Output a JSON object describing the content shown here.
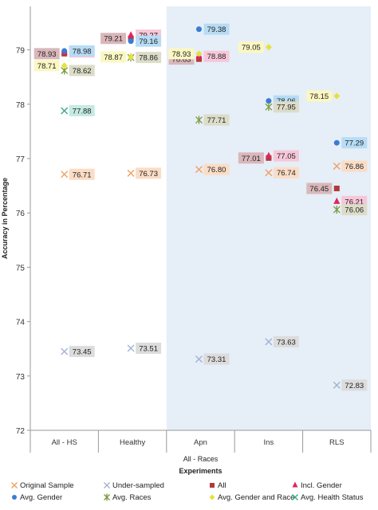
{
  "chart_data": {
    "type": "scatter",
    "ylabel": "Accuracy in Percentage",
    "xlabel": "Experiments",
    "group_label": "All - Races",
    "categories": [
      "All - HS",
      "Healthy",
      "Apn",
      "Ins",
      "RLS"
    ],
    "ylim": [
      72,
      79.8
    ],
    "yticks": [
      72,
      73,
      74,
      75,
      76,
      77,
      78,
      79
    ],
    "grid": false,
    "shaded_categories": [
      "Apn",
      "Ins",
      "RLS"
    ],
    "legend_position": "bottom",
    "series": [
      {
        "name": "Original Sample",
        "key": "orig",
        "marker": "x",
        "color": "#f0a062",
        "label_bg": "#fbdcc5",
        "values": [
          76.71,
          76.73,
          76.8,
          76.74,
          76.86
        ]
      },
      {
        "name": "Under-sampled",
        "key": "under",
        "marker": "x",
        "color": "#9fb3d6",
        "label_bg": "#dcdcdc",
        "values": [
          73.45,
          73.51,
          73.31,
          73.63,
          72.83
        ]
      },
      {
        "name": "All",
        "key": "all",
        "marker": "square",
        "color": "#b03a3a",
        "label_bg": "#d9b7bb",
        "values": [
          78.93,
          79.21,
          78.83,
          77.01,
          76.45
        ]
      },
      {
        "name": "Incl. Gender",
        "key": "gender",
        "marker": "triangle",
        "color": "#e0245f",
        "label_bg": "#f7c6d9",
        "values": [
          78.96,
          79.27,
          78.88,
          77.05,
          76.21
        ]
      },
      {
        "name": "Avg. Gender",
        "key": "avggender",
        "marker": "circle",
        "color": "#3a7bd5",
        "label_bg": "#b7dcf5",
        "values": [
          78.98,
          79.16,
          79.38,
          78.06,
          77.29
        ]
      },
      {
        "name": "Avg. Races",
        "key": "avgraces",
        "marker": "star",
        "color": "#7a9a3a",
        "label_bg": "#dcdcc8",
        "values": [
          78.62,
          78.86,
          77.71,
          77.95,
          76.06
        ]
      },
      {
        "name": "Avg. Gender and Race",
        "key": "avggr",
        "marker": "diamond",
        "color": "#e8e03a",
        "label_bg": "#fbf7c2",
        "values": [
          78.71,
          78.87,
          78.93,
          79.05,
          78.15
        ]
      },
      {
        "name": "Avg. Health Status",
        "key": "avghs",
        "marker": "x",
        "color": "#3aa88a",
        "label_bg": "#c4ebe2",
        "values": [
          77.88,
          null,
          null,
          null,
          null
        ]
      }
    ]
  }
}
